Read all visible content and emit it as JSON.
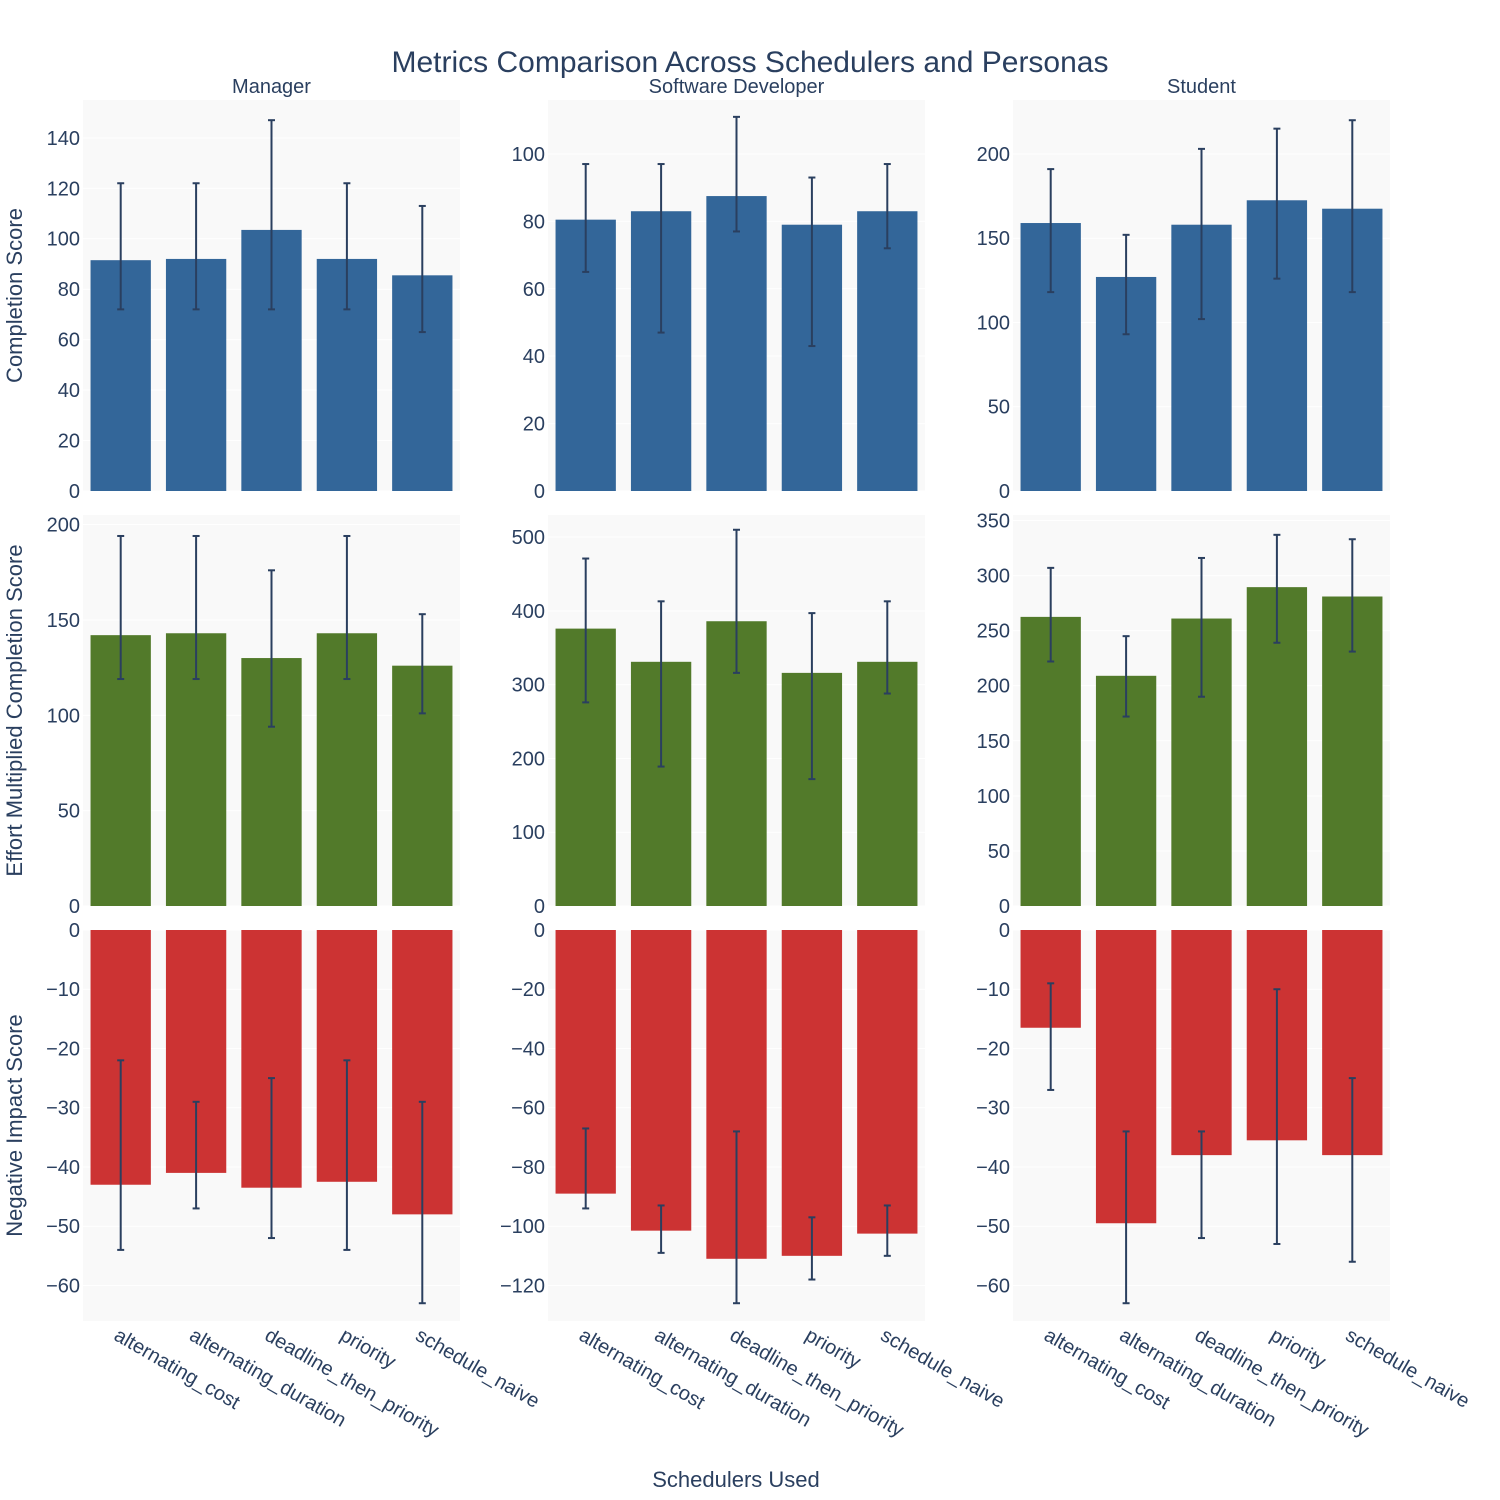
{
  "chart_data": {
    "type": "bar",
    "title": "Metrics Comparison Across Schedulers and Personas",
    "xlabel": "Schedulers Used",
    "categories": [
      "alternating_cost",
      "alternating_duration",
      "deadline_then_priority",
      "priority",
      "schedule_naive"
    ],
    "colors": {
      "completion": "#336699",
      "effort": "#527a2a",
      "negative": "#cc3333",
      "error_bar": "#2a3f5f",
      "plot_bg": "#f9f9f9",
      "grid": "#ffffff"
    },
    "personas": [
      "Manager",
      "Software Developer",
      "Student"
    ],
    "rows": [
      {
        "metric": "completion",
        "ylabel": "Completion Score",
        "panels": [
          {
            "persona": "Manager",
            "ylim": [
              0,
              155
            ],
            "ticks": [
              0,
              20,
              40,
              60,
              80,
              100,
              120,
              140
            ],
            "values": [
              91.5,
              92,
              103.5,
              92,
              85.5
            ],
            "err_low": [
              72,
              72,
              72,
              72,
              63
            ],
            "err_high": [
              122,
              122,
              147,
              122,
              113
            ]
          },
          {
            "persona": "Software Developer",
            "ylim": [
              0,
              116
            ],
            "ticks": [
              0,
              20,
              40,
              60,
              80,
              100
            ],
            "values": [
              80.5,
              83,
              87.5,
              79,
              83
            ],
            "err_low": [
              65,
              47,
              77,
              43,
              72
            ],
            "err_high": [
              97,
              97,
              111,
              93,
              97
            ]
          },
          {
            "persona": "Student",
            "ylim": [
              0,
              232
            ],
            "ticks": [
              0,
              50,
              100,
              150,
              200
            ],
            "values": [
              159,
              127,
              158,
              172.5,
              167.5
            ],
            "err_low": [
              118,
              93,
              102,
              126,
              118
            ],
            "err_high": [
              191,
              152,
              203,
              215,
              220
            ]
          }
        ]
      },
      {
        "metric": "effort",
        "ylabel": "Effort Multiplied Completion Score",
        "panels": [
          {
            "persona": "Manager",
            "ylim": [
              0,
              205
            ],
            "ticks": [
              0,
              50,
              100,
              150,
              200
            ],
            "values": [
              142,
              143,
              130,
              143,
              126
            ],
            "err_low": [
              119,
              119,
              94,
              119,
              101
            ],
            "err_high": [
              194,
              194,
              176,
              194,
              153
            ]
          },
          {
            "persona": "Software Developer",
            "ylim": [
              0,
              530
            ],
            "ticks": [
              0,
              100,
              200,
              300,
              400,
              500
            ],
            "values": [
              376,
              331,
              386,
              316,
              331
            ],
            "err_low": [
              276,
              189,
              316,
              172,
              288
            ],
            "err_high": [
              471,
              413,
              510,
              397,
              413
            ]
          },
          {
            "persona": "Student",
            "ylim": [
              0,
              355
            ],
            "ticks": [
              0,
              50,
              100,
              150,
              200,
              250,
              300,
              350
            ],
            "values": [
              262.5,
              209,
              261,
              289.5,
              281
            ],
            "err_low": [
              222,
              172,
              190,
              239,
              231
            ],
            "err_high": [
              307,
              245,
              316,
              337,
              333
            ]
          }
        ]
      },
      {
        "metric": "negative",
        "ylabel": "Negative Impact Score",
        "panels": [
          {
            "persona": "Manager",
            "ylim": [
              -66,
              0
            ],
            "ticks": [
              0,
              -10,
              -20,
              -30,
              -40,
              -50,
              -60
            ],
            "values": [
              -43,
              -41,
              -43.5,
              -42.5,
              -48
            ],
            "err_low": [
              -54,
              -47,
              -52,
              -54,
              -63
            ],
            "err_high": [
              -22,
              -29,
              -25,
              -22,
              -29
            ]
          },
          {
            "persona": "Software Developer",
            "ylim": [
              -132,
              0
            ],
            "ticks": [
              0,
              -20,
              -40,
              -60,
              -80,
              -100,
              -120
            ],
            "values": [
              -89,
              -101.5,
              -111,
              -110,
              -102.5
            ],
            "err_low": [
              -94,
              -109,
              -126,
              -118,
              -110
            ],
            "err_high": [
              -67,
              -93,
              -68,
              -97,
              -93
            ]
          },
          {
            "persona": "Student",
            "ylim": [
              -66,
              0
            ],
            "ticks": [
              0,
              -10,
              -20,
              -30,
              -40,
              -50,
              -60
            ],
            "values": [
              -16.5,
              -49.5,
              -38,
              -35.5,
              -38
            ],
            "err_low": [
              -27,
              -63,
              -52,
              -53,
              -56
            ],
            "err_high": [
              -9,
              -34,
              -34,
              -10,
              -25
            ]
          }
        ]
      }
    ]
  }
}
